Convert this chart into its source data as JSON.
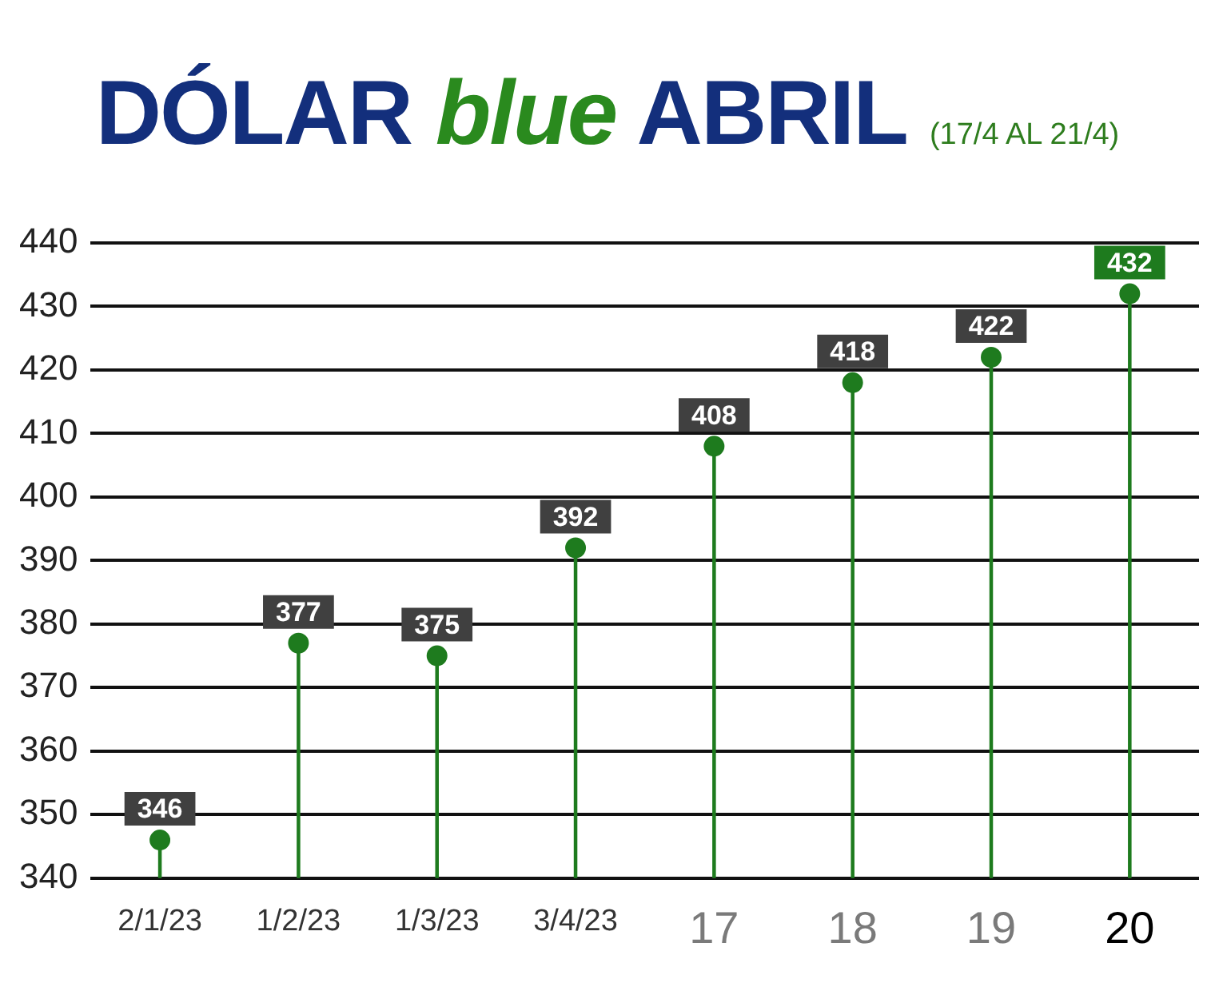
{
  "chart_data": {
    "type": "lollipop",
    "title": "DÓLAR blue ABRIL",
    "subtitle": "(17/4 AL 21/4)",
    "categories": [
      "2/1/23",
      "1/2/23",
      "1/3/23",
      "3/4/23",
      "17",
      "18",
      "19",
      "20"
    ],
    "series": [
      {
        "color": "#1e7b1e",
        "values": [
          346,
          377,
          375,
          392,
          408,
          418,
          422,
          432
        ]
      }
    ],
    "ylim": [
      340,
      440
    ],
    "yticks": [
      340,
      350,
      360,
      370,
      380,
      390,
      400,
      410,
      420,
      430,
      440
    ],
    "grid": "y",
    "data_labels": true,
    "marker": "circle"
  }
}
